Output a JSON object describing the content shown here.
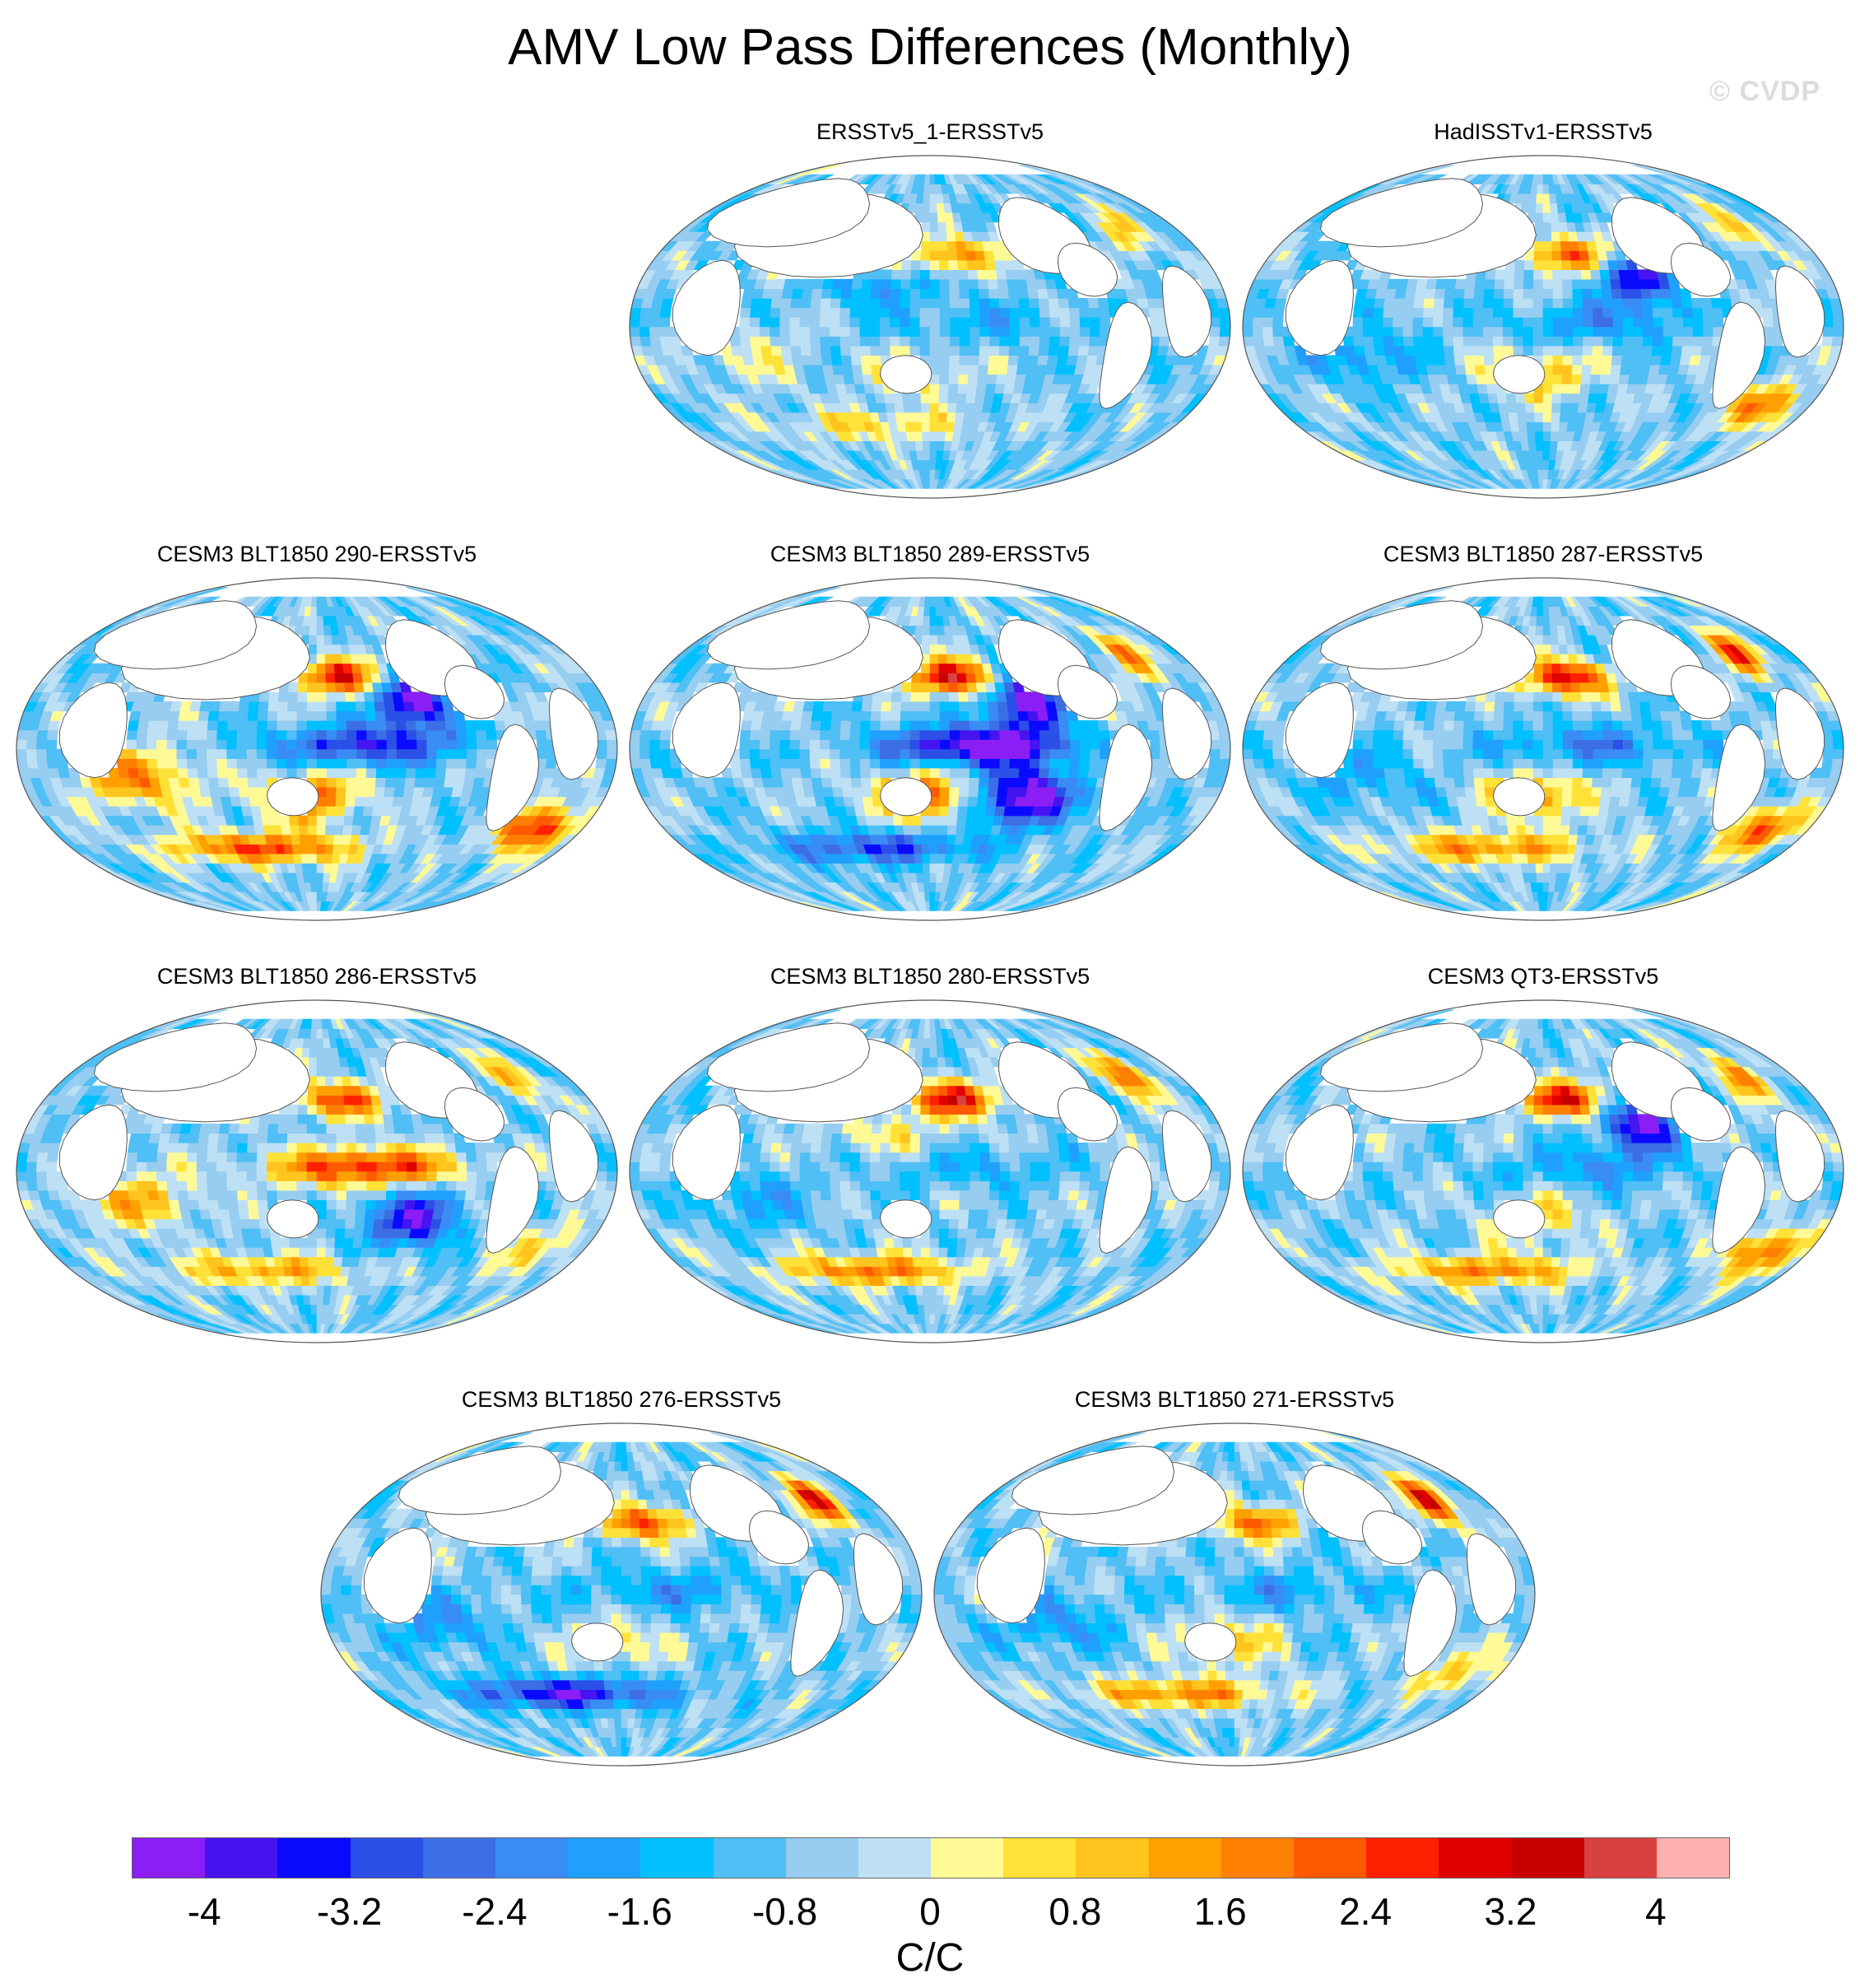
{
  "figure": {
    "title": "AMV Low Pass Differences (Monthly)",
    "watermark": "© CVDP"
  },
  "panels": [
    {
      "id": "p1",
      "title": "ERSSTv5_1-ERSSTv5",
      "pattern": [
        [
          "npac",
          2.4
        ],
        [
          "gulf",
          1.6
        ],
        [
          "nh_mid",
          -1.0
        ],
        [
          "eq_pac",
          -0.8
        ],
        [
          "sw_pac",
          1.2
        ],
        [
          "so",
          1.4
        ],
        [
          "ind",
          0.8
        ]
      ]
    },
    {
      "id": "p2",
      "title": "HadISSTv1-ERSSTv5",
      "pattern": [
        [
          "npac",
          2.8
        ],
        [
          "gulf",
          1.8
        ],
        [
          "ne_pac",
          -3.2
        ],
        [
          "eq_pac",
          -1.2
        ],
        [
          "sw_pac",
          2.0
        ],
        [
          "s_atl",
          2.4
        ],
        [
          "ind",
          -1.2
        ]
      ]
    },
    {
      "id": "p3",
      "title": "CESM3 BLT1850 290-ERSSTv5",
      "pattern": [
        [
          "npac",
          3.6
        ],
        [
          "ne_pac",
          -4.0
        ],
        [
          "eq_pac",
          -2.8
        ],
        [
          "sw_pac",
          3.0
        ],
        [
          "so",
          3.0
        ],
        [
          "s_atl",
          3.6
        ],
        [
          "ind",
          2.4
        ]
      ]
    },
    {
      "id": "p4",
      "title": "CESM3 BLT1850 289-ERSSTv5",
      "pattern": [
        [
          "npac",
          4.0
        ],
        [
          "ne_pac",
          -4.0
        ],
        [
          "eq_pac",
          -4.0
        ],
        [
          "sw_pac",
          3.2
        ],
        [
          "se_pac",
          -4.0
        ],
        [
          "gulf",
          2.4
        ],
        [
          "so",
          -2.4
        ]
      ]
    },
    {
      "id": "p5",
      "title": "CESM3 BLT1850 287-ERSSTv5",
      "pattern": [
        [
          "npac",
          3.8
        ],
        [
          "gulf",
          3.2
        ],
        [
          "eq_pac",
          -1.6
        ],
        [
          "sw_pac",
          2.4
        ],
        [
          "s_atl",
          2.8
        ],
        [
          "so",
          2.4
        ],
        [
          "ind",
          -1.0
        ]
      ]
    },
    {
      "id": "p6",
      "title": "CESM3 BLT1850 286-ERSSTv5",
      "pattern": [
        [
          "npac",
          3.2
        ],
        [
          "eq_pac",
          3.6
        ],
        [
          "se_pac",
          -3.0
        ],
        [
          "gulf",
          2.0
        ],
        [
          "ind",
          1.8
        ],
        [
          "so",
          2.0
        ],
        [
          "s_atl",
          1.4
        ]
      ]
    },
    {
      "id": "p7",
      "title": "CESM3 BLT1850 280-ERSSTv5",
      "pattern": [
        [
          "npac",
          3.8
        ],
        [
          "gulf",
          3.0
        ],
        [
          "nh_mid",
          1.0
        ],
        [
          "eq_pac",
          -0.8
        ],
        [
          "so",
          2.6
        ],
        [
          "ind",
          -1.0
        ]
      ]
    },
    {
      "id": "p8",
      "title": "CESM3 QT3-ERSSTv5",
      "pattern": [
        [
          "npac",
          3.8
        ],
        [
          "ne_pac",
          -3.6
        ],
        [
          "gulf",
          2.4
        ],
        [
          "eq_pac",
          -1.2
        ],
        [
          "sw_pac",
          1.6
        ],
        [
          "s_atl",
          2.8
        ],
        [
          "so",
          2.4
        ]
      ]
    },
    {
      "id": "p9",
      "title": "CESM3 BLT1850 276-ERSSTv5",
      "pattern": [
        [
          "npac",
          3.0
        ],
        [
          "gulf",
          3.6
        ],
        [
          "eq_pac",
          -1.2
        ],
        [
          "sw_pac",
          1.2
        ],
        [
          "so",
          -3.2
        ],
        [
          "ind",
          -1.2
        ]
      ]
    },
    {
      "id": "p10",
      "title": "CESM3 BLT1850 271-ERSSTv5",
      "pattern": [
        [
          "npac",
          2.8
        ],
        [
          "gulf",
          3.8
        ],
        [
          "eq_pac",
          -1.0
        ],
        [
          "sw_pac",
          1.6
        ],
        [
          "so",
          2.4
        ],
        [
          "s_atl",
          1.6
        ],
        [
          "ind",
          -1.2
        ]
      ]
    }
  ],
  "colorbar": {
    "colors": [
      "#8b1ef5",
      "#4514f0",
      "#0a0aff",
      "#2a50e8",
      "#3c6ee6",
      "#3a8cf5",
      "#1fa0ff",
      "#00c0ff",
      "#4fbff5",
      "#96cdf0",
      "#bde0f5",
      "#fffa96",
      "#ffe138",
      "#ffc41e",
      "#ffa000",
      "#ff8000",
      "#ff5a00",
      "#ff2000",
      "#e00000",
      "#c80000",
      "#d94040",
      "#ffb0b0"
    ],
    "levels": [
      -4,
      -3.6,
      -3.2,
      -2.8,
      -2.4,
      -2,
      -1.6,
      -1.2,
      -0.8,
      -0.4,
      0,
      0.4,
      0.8,
      1.2,
      1.6,
      2,
      2.4,
      2.8,
      3.2,
      3.6,
      4
    ],
    "tick_labels": [
      "-4",
      "-3.2",
      "-2.4",
      "-1.6",
      "-0.8",
      "0",
      "0.8",
      "1.6",
      "2.4",
      "3.2",
      "4"
    ],
    "tick_values": [
      -4,
      -3.2,
      -2.4,
      -1.6,
      -0.8,
      0,
      0.8,
      1.6,
      2.4,
      3.2,
      4
    ],
    "units": "C/C"
  }
}
